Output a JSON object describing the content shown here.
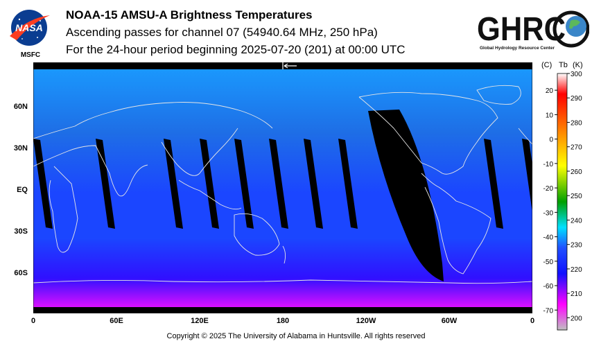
{
  "header": {
    "title": "NOAA-15 AMSU-A Brightness Temperatures",
    "subtitle": "Ascending passes for channel 07 (54940.64 MHz, 250 hPa)",
    "period": "For the 24-hour period beginning 2025-07-20 (201) at 00:00 UTC"
  },
  "logos": {
    "nasa_text": "NASA",
    "nasa_sub": "MSFC",
    "ghrc_text": "GHRC",
    "ghrc_sub": "Global Hydrology Resource Center"
  },
  "footer": {
    "copyright": "Copyright © 2025 The University of Alabama in Huntsville.  All rights reserved"
  },
  "chart_data": {
    "type": "heatmap",
    "title": "NOAA-15 AMSU-A Brightness Temperatures",
    "projection": "equirectangular",
    "x_ticks": [
      "0",
      "60E",
      "120E",
      "180",
      "120W",
      "60W",
      "0"
    ],
    "x_range_deg": [
      0,
      360
    ],
    "y_ticks": [
      "60N",
      "30N",
      "EQ",
      "30S",
      "60S"
    ],
    "y_range_deg": [
      -90,
      90
    ],
    "colorbar": {
      "unit_c": "(C)",
      "unit_label": "Tb",
      "unit_k": "(K)",
      "range_k": [
        195,
        300
      ],
      "k_ticks": [
        300,
        290,
        280,
        270,
        260,
        250,
        240,
        230,
        220,
        210,
        200
      ],
      "c_ticks": [
        20,
        10,
        0,
        -10,
        -20,
        -30,
        -40,
        -50,
        -60,
        -70
      ],
      "colors": {
        "warm_end": "#ffffff",
        "red": "#ff0000",
        "orange": "#ff8000",
        "yellow": "#ffff00",
        "green": "#00a000",
        "cyan": "#00e0ff",
        "blue": "#2050ff",
        "deep_blue": "#1010ff",
        "magenta": "#ff00ff",
        "cold_end": "#c0c0c0"
      }
    },
    "field_colors": {
      "arctic": "#1a9cff",
      "midlat": "#1e6ee6",
      "tropics": "#1b46ff",
      "south_mid": "#3010ff",
      "south_polar": "#ff10ff",
      "no_data": "#000000"
    },
    "data_gaps_note": "black stripes = orbital gaps between ascending passes"
  }
}
